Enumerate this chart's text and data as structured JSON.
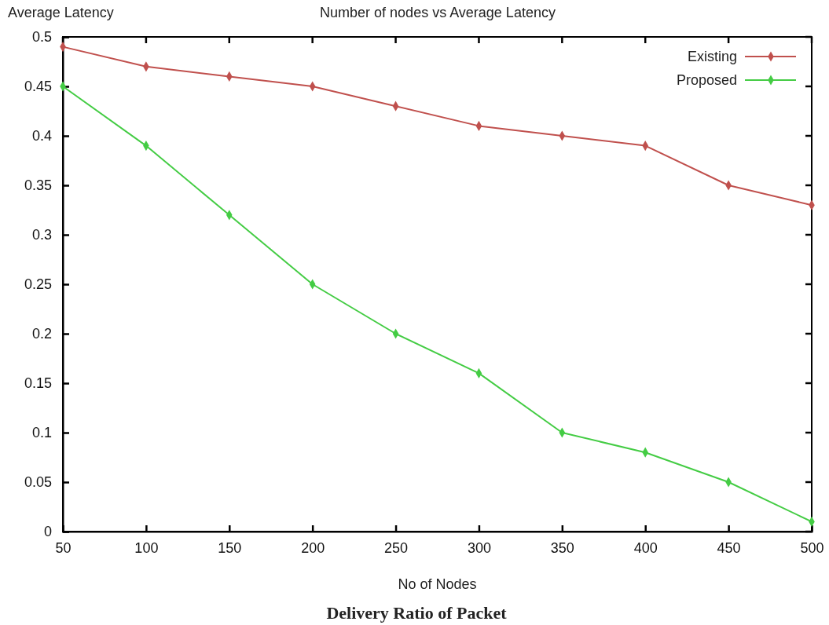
{
  "chart_data": {
    "type": "line",
    "title": "Number of nodes vs Average Latency",
    "xlabel": "No of Nodes",
    "ylabel": "Average Latency",
    "annotations": [
      "Delivery Ratio of Packet"
    ],
    "x": [
      50,
      100,
      150,
      200,
      250,
      300,
      350,
      400,
      450,
      500
    ],
    "series": [
      {
        "name": "Existing",
        "color": "#c0504d",
        "values": [
          0.49,
          0.47,
          0.46,
          0.45,
          0.43,
          0.41,
          0.4,
          0.39,
          0.35,
          0.33
        ]
      },
      {
        "name": "Proposed",
        "color": "#44cc44",
        "values": [
          0.45,
          0.39,
          0.32,
          0.25,
          0.2,
          0.16,
          0.1,
          0.08,
          0.05,
          0.01
        ]
      }
    ],
    "xlim": [
      50,
      500
    ],
    "xticks": [
      50,
      100,
      150,
      200,
      250,
      300,
      350,
      400,
      450,
      500
    ],
    "ylim": [
      0,
      0.5
    ],
    "yticks": [
      0,
      0.05,
      0.1,
      0.15,
      0.2,
      0.25,
      0.3,
      0.35,
      0.4,
      0.45,
      0.5
    ],
    "grid": false,
    "legend": "top right",
    "marker": "diamond",
    "line_style": "solid"
  }
}
